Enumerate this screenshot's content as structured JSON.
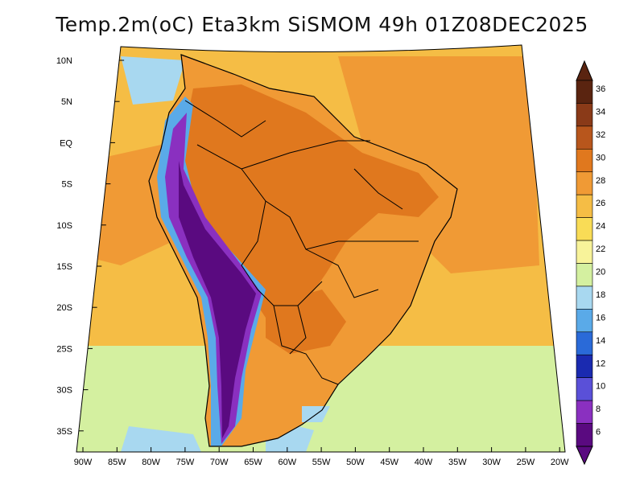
{
  "title": "Temp.2m(oC) Eta3km SiSMOM 49h 01Z08DEC2025",
  "lat_labels": [
    "10N",
    "5N",
    "EQ",
    "5S",
    "10S",
    "15S",
    "20S",
    "25S",
    "30S",
    "35S"
  ],
  "lon_labels": [
    "90W",
    "85W",
    "80W",
    "75W",
    "70W",
    "65W",
    "60W",
    "55W",
    "50W",
    "45W",
    "40W",
    "35W",
    "30W",
    "25W",
    "20W"
  ],
  "colorbar": {
    "labels": [
      "36",
      "34",
      "32",
      "30",
      "28",
      "26",
      "24",
      "22",
      "20",
      "18",
      "16",
      "14",
      "12",
      "10",
      "8",
      "6"
    ],
    "colors": [
      "#5a2410",
      "#8a3a18",
      "#b8561c",
      "#e0781e",
      "#f09a35",
      "#f5bd45",
      "#f9dc56",
      "#f8f39a",
      "#d4f0a0",
      "#a8d8f0",
      "#5aaae8",
      "#2a6ad8",
      "#1a2ab0",
      "#5a50d8",
      "#8a30c0",
      "#5a0a80"
    ],
    "min": 6,
    "max": 36
  },
  "field_colors": {
    "ocean_main": "#f5bd45",
    "ocean_warm": "#f09a35",
    "ocean_cool": "#f9dc56",
    "ocean_south": "#d4f0a0",
    "cold_south": "#a8d8f0",
    "land_warm": "#e0781e",
    "land_mid": "#f09a35",
    "andes_high": "#5a0a80",
    "andes_mid": "#8a30c0",
    "andes_low": "#5aaae8"
  }
}
